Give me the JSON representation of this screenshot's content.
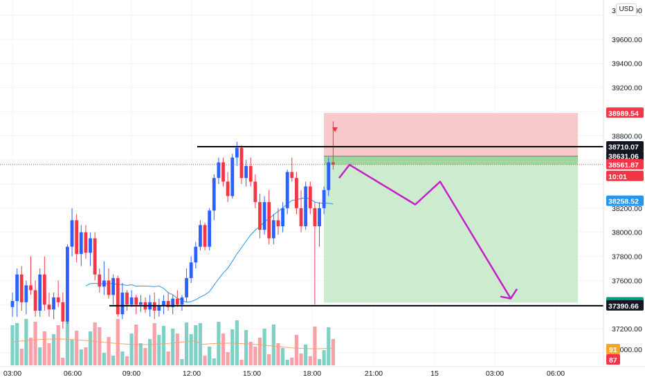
{
  "currency_button": "USD",
  "colors": {
    "up": "#2962ff",
    "down": "#f23645",
    "vol_up": "#7fd1c6",
    "vol_down": "#f7a1a9",
    "stop_zone": "#f8c9cb",
    "target_zone": "#cdeccf",
    "entry_band": "#9fd59f",
    "projection": "#c41ec8",
    "ma": "#2196f3",
    "vol_ma": "#f5a26b",
    "price_line": "#f23645"
  },
  "price_axis": {
    "tick_labels": [
      "39600.00",
      "39400.00",
      "39200.00",
      "38800.00",
      "38200.00",
      "38000.00",
      "37800.00",
      "37600.00",
      "37200.00"
    ],
    "top_partial": "39800.00",
    "bottom_partial": "37000.00"
  },
  "time_axis": {
    "tick_labels": [
      "03:00",
      "06:00",
      "09:00",
      "12:00",
      "15:00",
      "18:00",
      "21:00",
      "15",
      "03:00",
      "06:00"
    ]
  },
  "price_tags": [
    {
      "label": "38989.54",
      "bg": "#f23645",
      "fg": "#ffffff"
    },
    {
      "label": "38710.07",
      "bg": "#131722",
      "fg": "#ffffff"
    },
    {
      "label": "38631.06",
      "bg": "#131722",
      "fg": "#ffffff"
    },
    {
      "label": "38561.87",
      "bg": "#f23645",
      "fg": "#ffffff"
    },
    {
      "label": "10:01",
      "bg": "#f23645",
      "fg": "#ffffff"
    },
    {
      "label": "38258.52",
      "bg": "#2196f3",
      "fg": "#ffffff"
    },
    {
      "label": "37416.53",
      "bg": "#089981",
      "fg": "#ffffff"
    },
    {
      "label": "37390.66",
      "bg": "#131722",
      "fg": "#ffffff"
    },
    {
      "label": "91",
      "bg": "#f5a623",
      "fg": "#ffffff"
    },
    {
      "label": "87",
      "bg": "#f23645",
      "fg": "#ffffff"
    }
  ],
  "chart_data": {
    "type": "candlestick",
    "symbol_currency": "USD",
    "y_range": [
      36880,
      39880
    ],
    "x_ticks": [
      "03:00",
      "06:00",
      "09:00",
      "12:00",
      "15:00",
      "18:00",
      "21:00",
      "15",
      "03:00",
      "06:00"
    ],
    "candles": [
      [
        37380,
        37500,
        37300,
        37430
      ],
      [
        37430,
        37700,
        37300,
        37650
      ],
      [
        37650,
        37720,
        37350,
        37420
      ],
      [
        37420,
        37600,
        37320,
        37560
      ],
      [
        37560,
        37800,
        37480,
        37520
      ],
      [
        37520,
        37600,
        37300,
        37350
      ],
      [
        37350,
        37700,
        37300,
        37650
      ],
      [
        37650,
        37800,
        37350,
        37400
      ],
      [
        37400,
        37500,
        37300,
        37360
      ],
      [
        37360,
        37500,
        37280,
        37460
      ],
      [
        37460,
        37600,
        37380,
        37420
      ],
      [
        37420,
        37500,
        37200,
        37260
      ],
      [
        37260,
        37900,
        37240,
        37880
      ],
      [
        37880,
        38200,
        37800,
        38100
      ],
      [
        38100,
        38150,
        37750,
        37820
      ],
      [
        37820,
        38060,
        37720,
        38000
      ],
      [
        38000,
        38060,
        37780,
        37830
      ],
      [
        37830,
        38000,
        37720,
        37950
      ],
      [
        37950,
        38000,
        37600,
        37650
      ],
      [
        37650,
        37700,
        37500,
        37550
      ],
      [
        37550,
        37760,
        37480,
        37600
      ],
      [
        37600,
        37700,
        37450,
        37480
      ],
      [
        37480,
        37650,
        37400,
        37620
      ],
      [
        37620,
        37640,
        37300,
        37320
      ],
      [
        37320,
        37580,
        37280,
        37500
      ],
      [
        37500,
        37520,
        37350,
        37400
      ],
      [
        37400,
        37520,
        37380,
        37460
      ],
      [
        37460,
        37480,
        37320,
        37400
      ],
      [
        37400,
        37480,
        37340,
        37420
      ],
      [
        37420,
        37460,
        37330,
        37360
      ],
      [
        37360,
        37480,
        37300,
        37420
      ],
      [
        37420,
        37500,
        37280,
        37350
      ],
      [
        37350,
        37450,
        37300,
        37390
      ],
      [
        37390,
        37480,
        37320,
        37430
      ],
      [
        37430,
        37500,
        37350,
        37380
      ],
      [
        37380,
        37480,
        37320,
        37450
      ],
      [
        37450,
        37520,
        37380,
        37400
      ],
      [
        37400,
        37480,
        37350,
        37460
      ],
      [
        37460,
        37700,
        37420,
        37620
      ],
      [
        37620,
        37800,
        37580,
        37750
      ],
      [
        37750,
        37920,
        37700,
        37880
      ],
      [
        37880,
        38100,
        37850,
        38060
      ],
      [
        38060,
        38080,
        37850,
        37880
      ],
      [
        37880,
        38200,
        37850,
        38180
      ],
      [
        38180,
        38480,
        38100,
        38450
      ],
      [
        38450,
        38620,
        38400,
        38580
      ],
      [
        38580,
        38620,
        38380,
        38420
      ],
      [
        38420,
        38500,
        38250,
        38300
      ],
      [
        38300,
        38650,
        38280,
        38620
      ],
      [
        38620,
        38750,
        38550,
        38700
      ],
      [
        38700,
        38720,
        38400,
        38450
      ],
      [
        38450,
        38600,
        38380,
        38550
      ],
      [
        38550,
        38620,
        38380,
        38420
      ],
      [
        38420,
        38480,
        38200,
        38250
      ],
      [
        38250,
        38320,
        37950,
        38020
      ],
      [
        38020,
        38300,
        37980,
        38250
      ],
      [
        38250,
        38350,
        37900,
        37950
      ],
      [
        37950,
        38150,
        37900,
        38100
      ],
      [
        38100,
        38200,
        37980,
        38050
      ],
      [
        38050,
        38250,
        38000,
        38200
      ],
      [
        38200,
        38520,
        38150,
        38500
      ],
      [
        38500,
        38620,
        38420,
        38450
      ],
      [
        38450,
        38500,
        38150,
        38200
      ],
      [
        38200,
        38350,
        38000,
        38050
      ],
      [
        38050,
        38420,
        38020,
        38380
      ],
      [
        38380,
        38420,
        38150,
        38200
      ],
      [
        38200,
        38250,
        37400,
        38050
      ],
      [
        38050,
        38250,
        37880,
        38200
      ],
      [
        38200,
        38380,
        38150,
        38350
      ],
      [
        38350,
        38620,
        38300,
        38580
      ],
      [
        38580,
        38920,
        38520,
        38560
      ]
    ],
    "moving_average_label": "",
    "annotations": {
      "resistance": 38710.07,
      "support": 37390.66,
      "short_entry": 38631.06,
      "stop_loss": 38989.54,
      "take_profit": 37416.53,
      "last_price": 38561.87,
      "countdown": "10:01",
      "ma_value": 38258.52
    },
    "projection_path": [
      [
        0,
        38450
      ],
      [
        1,
        38560
      ],
      [
        2,
        38230
      ],
      [
        3,
        38420
      ],
      [
        4,
        37450
      ]
    ],
    "volume_values": [
      "91",
      "87"
    ]
  }
}
